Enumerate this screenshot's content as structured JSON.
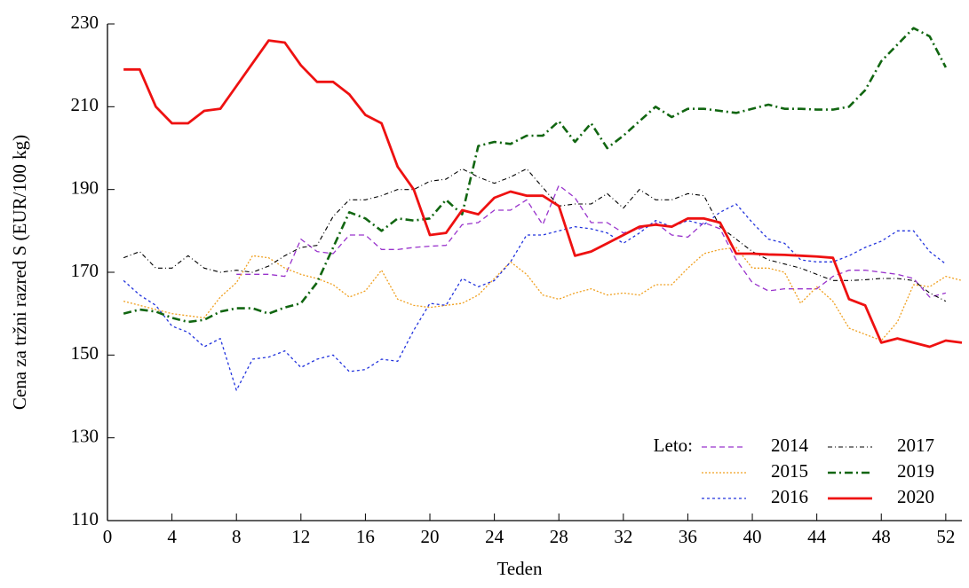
{
  "chart_data": {
    "type": "line",
    "xlabel": "Teden",
    "ylabel": "Cena za tržni razred S (EUR/100 kg)",
    "legend_title": "Leto:",
    "legend": "lower right",
    "xlim": [
      0,
      53
    ],
    "xticks": [
      0,
      4,
      8,
      12,
      16,
      20,
      24,
      28,
      32,
      36,
      40,
      44,
      48,
      52
    ],
    "ylim": [
      110,
      230
    ],
    "yticks": [
      110,
      130,
      150,
      170,
      190,
      210,
      230
    ],
    "x": [
      1,
      2,
      3,
      4,
      5,
      6,
      7,
      8,
      9,
      10,
      11,
      12,
      13,
      14,
      15,
      16,
      17,
      18,
      19,
      20,
      21,
      22,
      23,
      24,
      25,
      26,
      27,
      28,
      29,
      30,
      31,
      32,
      33,
      34,
      35,
      36,
      37,
      38,
      39,
      40,
      41,
      42,
      43,
      44,
      45,
      46,
      47,
      48,
      49,
      50,
      51,
      52,
      53
    ],
    "series": [
      {
        "name": "2014",
        "color": "#9933cc",
        "dash": "6,4",
        "width": 1.3,
        "values": [
          null,
          null,
          null,
          null,
          null,
          null,
          null,
          169.5,
          169.5,
          169.5,
          169,
          178,
          175,
          174.5,
          179,
          179,
          175.5,
          175.5,
          176,
          176.3,
          176.5,
          181.5,
          182,
          185,
          185,
          187.5,
          181.5,
          191,
          188,
          182,
          182,
          179.5,
          180.5,
          182,
          179,
          178.5,
          182,
          180.5,
          173,
          167.5,
          165.5,
          166,
          166,
          166,
          169,
          170.5,
          170.5,
          170,
          169.5,
          168.5,
          164,
          165,
          null
        ]
      },
      {
        "name": "2015",
        "color": "#f0a020",
        "dash": "2,2",
        "width": 1.3,
        "values": [
          163,
          162,
          161,
          160,
          159.5,
          159,
          164,
          167.5,
          174,
          173.5,
          171,
          169.5,
          168.5,
          167,
          164,
          165.5,
          170.5,
          163.5,
          162,
          161.5,
          162,
          162.5,
          164.5,
          168.5,
          172.5,
          169.5,
          164.5,
          163.5,
          165,
          166,
          164.5,
          165,
          164.5,
          167,
          167,
          171,
          174.5,
          175.5,
          176,
          171,
          171,
          170,
          162.5,
          166.5,
          163,
          156.5,
          155,
          153.5,
          158,
          167,
          166.5,
          169,
          168
        ]
      },
      {
        "name": "2016",
        "color": "#2233dd",
        "dash": "3,3",
        "width": 1.3,
        "values": [
          168,
          164.5,
          162,
          157,
          155.5,
          152,
          154,
          141.5,
          149,
          149.5,
          151,
          147,
          149,
          150,
          146,
          146.5,
          149,
          148.5,
          156,
          162.5,
          162,
          168.5,
          166.5,
          168,
          172.5,
          179,
          179,
          180,
          181,
          180.5,
          179.5,
          177,
          179.5,
          182.5,
          181,
          182.5,
          181.5,
          184.5,
          186.5,
          182,
          178,
          177,
          173,
          172.5,
          172.5,
          174,
          176,
          177.5,
          180,
          180,
          175,
          172,
          null
        ]
      },
      {
        "name": "2017",
        "color": "#000000",
        "dash": "5,3,1,3",
        "width": 1.1,
        "values": [
          173.5,
          175,
          171,
          171,
          174,
          171,
          170,
          170.5,
          170,
          171.5,
          174,
          176,
          176.5,
          183.5,
          187.5,
          187.5,
          188.5,
          190,
          190,
          192,
          192.5,
          195,
          193,
          191.5,
          193,
          195,
          190.5,
          186,
          186.5,
          186.5,
          189,
          185.5,
          190,
          187.5,
          187.5,
          189,
          188.5,
          181,
          178,
          175,
          173,
          172,
          171,
          169.5,
          168,
          168,
          168.2,
          168.5,
          168.5,
          168,
          165,
          163,
          null
        ]
      },
      {
        "name": "2019",
        "color": "#116611",
        "dash": "9,4,2,4",
        "width": 2.6,
        "values": [
          160,
          161,
          160.5,
          159,
          158,
          158.5,
          160.5,
          161.3,
          161.3,
          160,
          161.5,
          162.5,
          167.5,
          176,
          184.5,
          183,
          180,
          183,
          182.5,
          183,
          187.5,
          184,
          200.5,
          201.5,
          201,
          203,
          203,
          206.5,
          201.5,
          206,
          200,
          203,
          206.5,
          210,
          207.5,
          209.5,
          209.5,
          209,
          208.5,
          209.5,
          210.5,
          209.5,
          209.5,
          209.3,
          209.3,
          210,
          214,
          221,
          225,
          229,
          227,
          219.5,
          null
        ]
      },
      {
        "name": "2020",
        "color": "#ee1111",
        "dash": "none",
        "width": 2.8,
        "values": [
          219,
          219,
          210,
          206,
          206,
          209,
          209.5,
          215,
          220.5,
          226,
          225.5,
          220,
          216,
          216,
          213,
          208,
          206,
          195.5,
          190,
          179,
          179.5,
          185,
          184,
          188,
          189.5,
          188.5,
          188.5,
          186,
          174,
          175,
          177,
          179,
          181,
          181.5,
          181,
          183,
          183,
          182,
          174.5,
          174.5,
          174.3,
          174.2,
          174,
          173.8,
          173.5,
          163.5,
          162,
          153,
          154,
          153,
          152,
          153.5,
          153
        ]
      }
    ]
  }
}
